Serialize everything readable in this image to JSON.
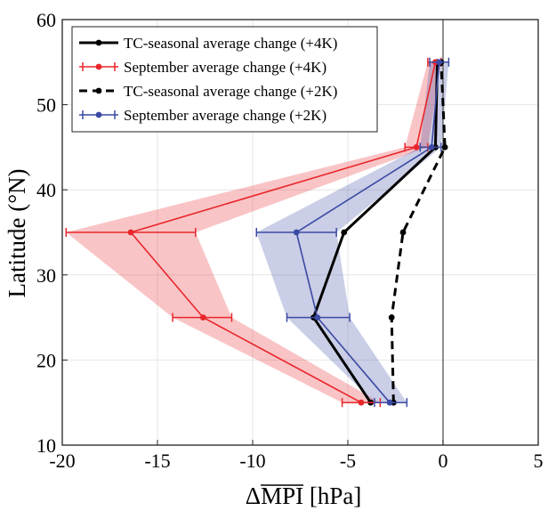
{
  "chart_data": {
    "type": "line",
    "xlabel": "ΔMPI [hPa]",
    "xlabel_parts": {
      "delta": "Δ",
      "overlined": "MPI",
      "unit": " [hPa]"
    },
    "ylabel": "Latitude (°N)",
    "xlim": [
      -20,
      5
    ],
    "ylim": [
      10,
      60
    ],
    "xticks": [
      "-20",
      "-15",
      "-10",
      "-5",
      "0",
      "5"
    ],
    "yticks": [
      "10",
      "20",
      "30",
      "40",
      "50",
      "60"
    ],
    "grid": true,
    "zero_line": true,
    "legend_position": "top-left",
    "latitudes": [
      15,
      25,
      35,
      45,
      55
    ],
    "series": [
      {
        "name": "TC-seasonal average change (+4K)",
        "color": "#000000",
        "style": "solid",
        "values": [
          -3.8,
          -6.8,
          -5.2,
          -0.4,
          -0.3
        ]
      },
      {
        "name": "September average change (+4K)",
        "color": "#e8262b",
        "style": "solid",
        "values": [
          -4.3,
          -12.6,
          -16.4,
          -1.4,
          -0.4
        ],
        "error_low": [
          -5.3,
          -14.2,
          -19.8,
          -2.0,
          -0.8
        ],
        "error_high": [
          -3.3,
          -11.1,
          -13.0,
          -0.8,
          -0.1
        ]
      },
      {
        "name": "TC-seasonal average change (+2K)",
        "color": "#000000",
        "style": "dashed",
        "values": [
          -2.6,
          -2.7,
          -2.1,
          0.1,
          -0.1
        ]
      },
      {
        "name": "September average change (+2K)",
        "color": "#3b4aa3",
        "style": "solid",
        "values": [
          -2.8,
          -6.6,
          -7.7,
          -0.6,
          -0.2
        ],
        "error_low": [
          -3.6,
          -8.2,
          -9.8,
          -1.2,
          -0.7
        ],
        "error_high": [
          -1.9,
          -4.9,
          -5.6,
          -0.1,
          0.3
        ]
      }
    ]
  }
}
